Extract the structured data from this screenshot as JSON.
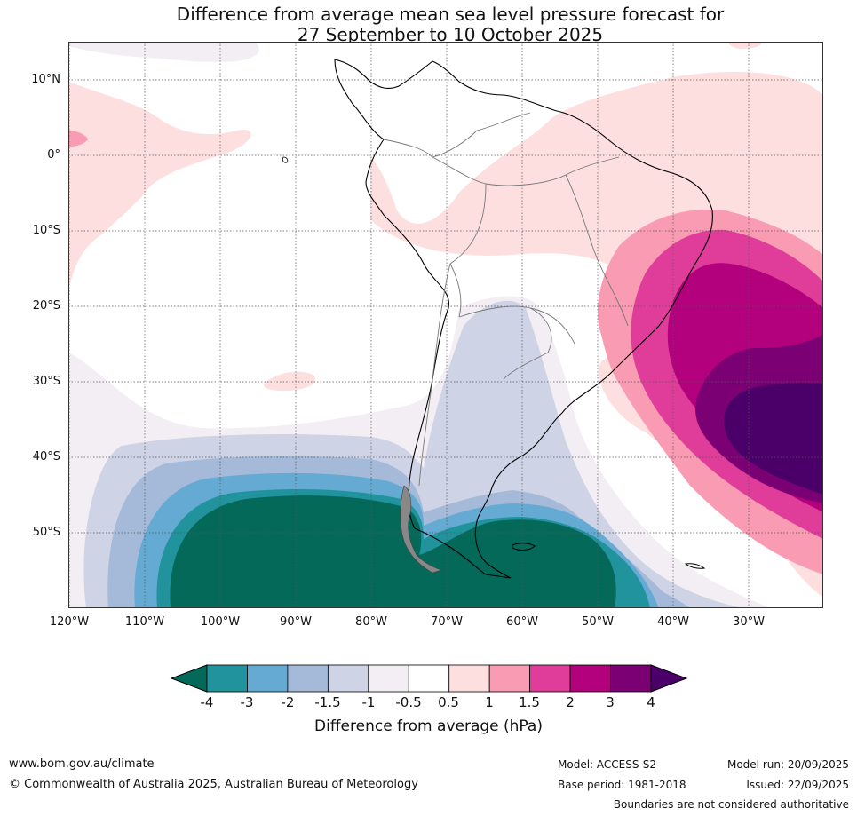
{
  "header": {
    "title_line1": "Difference from average mean sea level pressure forecast for",
    "title_line2": "27 September to 10 October 2025"
  },
  "map": {
    "region": "South America and adjacent oceans",
    "lat_labels": [
      "10°N",
      "0°",
      "10°S",
      "20°S",
      "30°S",
      "40°S",
      "50°S"
    ],
    "lon_labels": [
      "120°W",
      "110°W",
      "100°W",
      "90°W",
      "80°W",
      "70°W",
      "60°W",
      "50°W",
      "40°W",
      "30°W"
    ]
  },
  "colorbar": {
    "title": "Difference from average (hPa)",
    "tick_labels": [
      "-4",
      "-3",
      "-2",
      "-1.5",
      "-1",
      "-0.5",
      "0.5",
      "1",
      "1.5",
      "2",
      "3",
      "4"
    ],
    "colors": {
      "below_min": "#05695a",
      "bins": [
        "#21939c",
        "#64aad2",
        "#a5bad9",
        "#cfd3e6",
        "#f3eef3",
        "#ffffff",
        "#fddfe0",
        "#f89bb3",
        "#e03d9a",
        "#b3007d",
        "#7b0074"
      ],
      "above_max": "#4a0068"
    }
  },
  "footer": {
    "website": "www.bom.gov.au/climate",
    "copyright": "© Commonwealth of Australia 2025, Australian Bureau of Meteorology",
    "model": "Model: ACCESS-S2",
    "base_period": "Base period: 1981-2018",
    "model_run": "Model run: 20/09/2025",
    "issued": "Issued: 22/09/2025",
    "disclaimer": "Boundaries are not considered authoritative"
  }
}
